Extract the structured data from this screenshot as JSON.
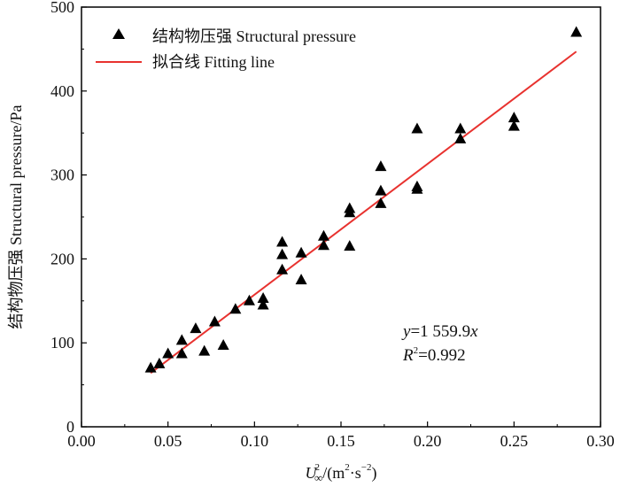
{
  "chart_data": {
    "type": "scatter",
    "xlabel_parts": {
      "symbol": "U",
      "sup": "2",
      "sub": "∞",
      "rest": "/(m",
      "sup2": "2",
      "dot": "·s",
      "sup3": "−2",
      "close": ")"
    },
    "ylabel": "结构物压强 Structural pressure/Pa",
    "xlim": [
      0.0,
      0.3
    ],
    "ylim": [
      0,
      500
    ],
    "x_ticks": [
      "0.00",
      "0.05",
      "0.10",
      "0.15",
      "0.20",
      "0.25",
      "0.30"
    ],
    "y_ticks": [
      "0",
      "100",
      "200",
      "300",
      "400",
      "500"
    ],
    "legend": {
      "placement": "top-left",
      "scatter_label": "结构物压强 Structural pressure",
      "line_label": "拟合线 Fitting line"
    },
    "colors": {
      "points": "#000000",
      "fit_line": "#e8322f"
    },
    "series": [
      {
        "name": "结构物压强 Structural pressure",
        "type": "scatter",
        "marker": "triangle",
        "points": [
          [
            0.04,
            70
          ],
          [
            0.045,
            75
          ],
          [
            0.05,
            87
          ],
          [
            0.058,
            87
          ],
          [
            0.058,
            103
          ],
          [
            0.066,
            117
          ],
          [
            0.071,
            90
          ],
          [
            0.077,
            125
          ],
          [
            0.082,
            97
          ],
          [
            0.089,
            140
          ],
          [
            0.097,
            150
          ],
          [
            0.105,
            145
          ],
          [
            0.105,
            153
          ],
          [
            0.116,
            220
          ],
          [
            0.116,
            205
          ],
          [
            0.116,
            187
          ],
          [
            0.127,
            207
          ],
          [
            0.127,
            175
          ],
          [
            0.14,
            227
          ],
          [
            0.14,
            216
          ],
          [
            0.155,
            260
          ],
          [
            0.155,
            255
          ],
          [
            0.155,
            215
          ],
          [
            0.173,
            310
          ],
          [
            0.173,
            281
          ],
          [
            0.173,
            266
          ],
          [
            0.194,
            355
          ],
          [
            0.194,
            286
          ],
          [
            0.194,
            283
          ],
          [
            0.219,
            355
          ],
          [
            0.219,
            343
          ],
          [
            0.25,
            368
          ],
          [
            0.25,
            358
          ],
          [
            0.286,
            470
          ]
        ]
      },
      {
        "name": "拟合线 Fitting line",
        "type": "line",
        "x": [
          0.04,
          0.286
        ],
        "y": [
          64,
          447
        ]
      }
    ],
    "annotation": {
      "equation_var": "y",
      "equation_rest": "=1 559.9",
      "equation_x": "x",
      "r2_symbol": "R",
      "r2_sup": "2",
      "r2_rest": "=0.992"
    }
  }
}
